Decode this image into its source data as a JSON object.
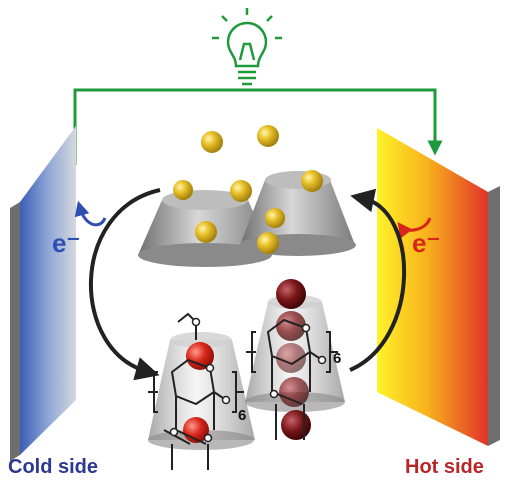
{
  "labels": {
    "cold_side": "Cold side",
    "hot_side": "Hot side",
    "electron_left": "e⁻",
    "electron_right": "e⁻",
    "repeat_left": "6",
    "repeat_right": "6"
  }
}
